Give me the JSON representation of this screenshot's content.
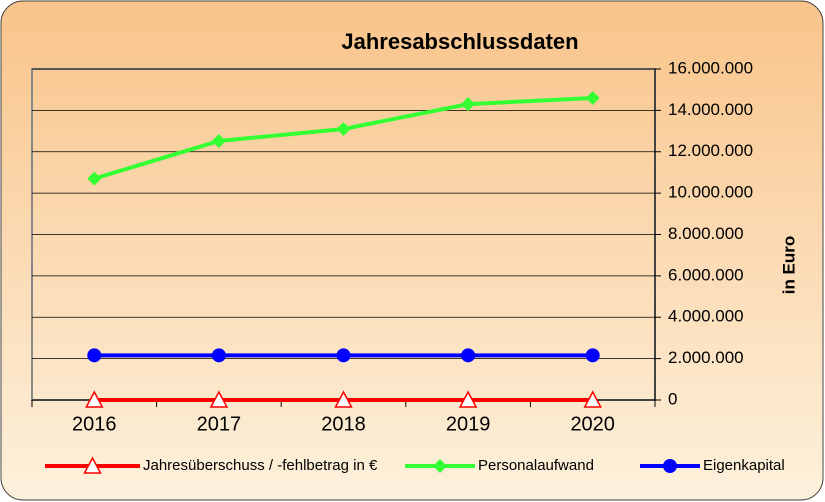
{
  "chart_data": {
    "type": "line",
    "title": "Jahresabschlussdaten",
    "y_label": "in Euro",
    "categories": [
      "2016",
      "2017",
      "2018",
      "2019",
      "2020"
    ],
    "series": [
      {
        "name": "Jahresüberschuss / -fehlbetrag in €",
        "color": "#ff0000",
        "marker": "triangle",
        "values": [
          0,
          0,
          0,
          0,
          0
        ]
      },
      {
        "name": "Personalaufwand",
        "color": "#33ff33",
        "marker": "diamond",
        "values": [
          10700000,
          12520000,
          13100000,
          14300000,
          14600000
        ]
      },
      {
        "name": "Eigenkapital",
        "color": "#0000ff",
        "marker": "circle",
        "values": [
          2160000,
          2160000,
          2160000,
          2160000,
          2160000
        ]
      }
    ],
    "ylim": [
      0,
      16000000
    ],
    "yticks": [
      0,
      {
        "value": 2000000,
        "label": "2.000.000"
      },
      {
        "value": 4000000,
        "label": "4.000.000"
      },
      {
        "value": 6000000,
        "label": "6.000.000"
      },
      {
        "value": 8000000,
        "label": "8.000.000"
      },
      {
        "value": 10000000,
        "label": "10.000.000"
      },
      {
        "value": 12000000,
        "label": "12.000.000"
      },
      {
        "value": 14000000,
        "label": "14.000.000"
      },
      {
        "value": 16000000,
        "label": "16.000.000"
      }
    ],
    "y_axis_side": "right",
    "grid": true,
    "legend": "bottom"
  }
}
